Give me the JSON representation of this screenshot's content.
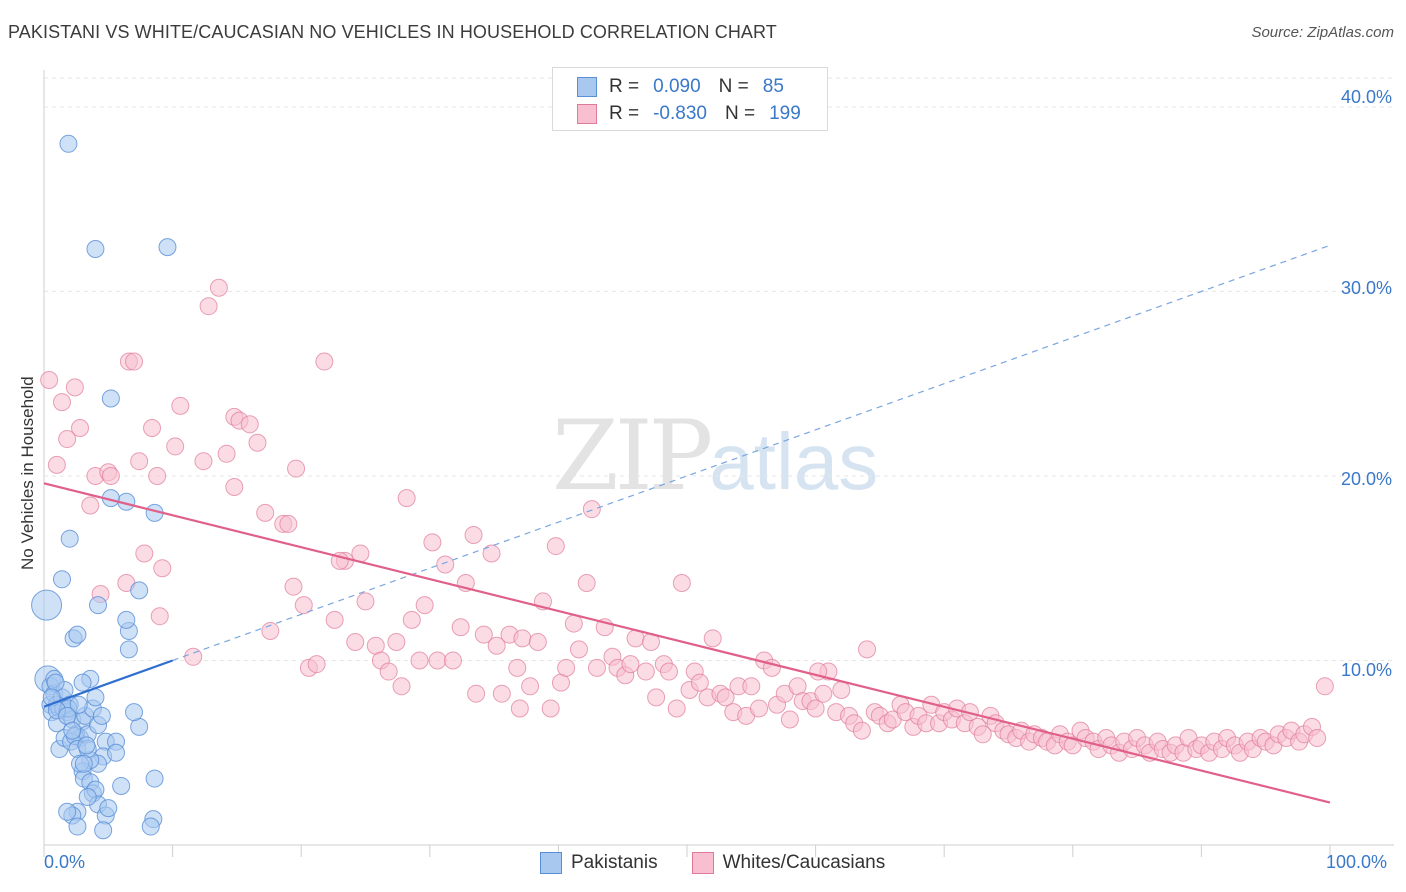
{
  "title": "PAKISTANI VS WHITE/CAUCASIAN NO VEHICLES IN HOUSEHOLD CORRELATION CHART",
  "source": "Source: ZipAtlas.com",
  "watermark": {
    "zip": "ZIP",
    "atlas": "atlas"
  },
  "legend_top": {
    "rows": [
      {
        "r_label": "R =",
        "r_value": "0.090",
        "n_label": "N =",
        "n_value": "85",
        "color": "#a8c8f0",
        "border": "#5a8fd6"
      },
      {
        "r_label": "R =",
        "r_value": "-0.830",
        "n_label": "N =",
        "n_value": "199",
        "color": "#f7bfd0",
        "border": "#e07a9a"
      }
    ]
  },
  "chart_data": {
    "type": "scatter",
    "title": "PAKISTANI VS WHITE/CAUCASIAN NO VEHICLES IN HOUSEHOLD CORRELATION CHART",
    "xlabel": "",
    "ylabel": "No Vehicles in Household",
    "xlim": [
      0,
      100
    ],
    "ylim": [
      0,
      42
    ],
    "x_tick_labels": [
      "0.0%",
      "100.0%"
    ],
    "y_ticks": [
      10,
      20,
      30,
      40
    ],
    "y_tick_labels": [
      "10.0%",
      "20.0%",
      "30.0%",
      "40.0%"
    ],
    "grid": true,
    "legend_position": "bottom",
    "series": [
      {
        "name": "Pakistanis",
        "color": "#a8c8f0",
        "edge": "#5a8fd6",
        "trend": {
          "x0": 0,
          "y0": 7.5,
          "x1": 10,
          "y1": 10.0,
          "dashed_to_x": 100,
          "dashed_to_y": 32.5,
          "color": "#2f6fd0"
        },
        "points": [
          [
            0.2,
            13.0
          ],
          [
            0.3,
            9.0
          ],
          [
            0.5,
            8.6
          ],
          [
            0.5,
            7.6
          ],
          [
            0.6,
            7.2
          ],
          [
            0.8,
            8.2
          ],
          [
            1.0,
            7.6
          ],
          [
            1.2,
            7.4
          ],
          [
            1.4,
            8.0
          ],
          [
            1.5,
            7.4
          ],
          [
            1.0,
            6.6
          ],
          [
            0.8,
            9.0
          ],
          [
            1.6,
            8.4
          ],
          [
            1.8,
            7.2
          ],
          [
            2.0,
            7.6
          ],
          [
            2.2,
            6.8
          ],
          [
            2.5,
            6.0
          ],
          [
            2.8,
            5.8
          ],
          [
            1.2,
            5.2
          ],
          [
            1.6,
            5.8
          ],
          [
            2.1,
            5.6
          ],
          [
            2.4,
            5.9
          ],
          [
            2.6,
            5.2
          ],
          [
            3.0,
            6.7
          ],
          [
            3.2,
            7.0
          ],
          [
            3.4,
            6.0
          ],
          [
            3.6,
            9.0
          ],
          [
            3.0,
            8.8
          ],
          [
            3.8,
            7.4
          ],
          [
            4.2,
            6.5
          ],
          [
            4.5,
            7.0
          ],
          [
            4.8,
            5.6
          ],
          [
            4.6,
            4.8
          ],
          [
            4.2,
            4.4
          ],
          [
            3.6,
            4.6
          ],
          [
            3.4,
            5.2
          ],
          [
            3.0,
            4.0
          ],
          [
            2.8,
            4.4
          ],
          [
            3.1,
            3.6
          ],
          [
            3.6,
            3.4
          ],
          [
            3.8,
            2.8
          ],
          [
            4.0,
            3.0
          ],
          [
            4.2,
            2.2
          ],
          [
            3.4,
            2.6
          ],
          [
            2.6,
            1.8
          ],
          [
            2.2,
            1.6
          ],
          [
            1.8,
            1.8
          ],
          [
            2.6,
            1.0
          ],
          [
            4.8,
            1.6
          ],
          [
            5.0,
            2.0
          ],
          [
            4.6,
            0.8
          ],
          [
            6.0,
            3.2
          ],
          [
            8.6,
            3.6
          ],
          [
            8.5,
            1.4
          ],
          [
            8.3,
            1.0
          ],
          [
            7.4,
            6.4
          ],
          [
            7.0,
            7.2
          ],
          [
            5.6,
            5.6
          ],
          [
            6.6,
            11.6
          ],
          [
            6.4,
            12.2
          ],
          [
            6.6,
            10.6
          ],
          [
            4.2,
            13.0
          ],
          [
            2.3,
            11.2
          ],
          [
            2.6,
            11.4
          ],
          [
            1.4,
            14.4
          ],
          [
            2.0,
            16.6
          ],
          [
            6.4,
            18.6
          ],
          [
            5.2,
            18.8
          ],
          [
            8.6,
            18.0
          ],
          [
            7.4,
            13.8
          ],
          [
            5.2,
            24.2
          ],
          [
            4.0,
            32.3
          ],
          [
            9.6,
            32.4
          ],
          [
            1.9,
            38.0
          ],
          [
            0.9,
            8.8
          ],
          [
            1.9,
            7.4
          ],
          [
            2.7,
            7.6
          ],
          [
            3.3,
            5.4
          ],
          [
            3.1,
            4.4
          ],
          [
            5.6,
            5.0
          ],
          [
            4.0,
            8.0
          ],
          [
            0.6,
            8.0
          ],
          [
            1.0,
            7.3
          ],
          [
            1.8,
            7.0
          ],
          [
            2.2,
            6.2
          ]
        ]
      },
      {
        "name": "Whites/Caucasians",
        "color": "#f7bfd0",
        "edge": "#e07a9a",
        "trend": {
          "x0": 0,
          "y0": 19.6,
          "x1": 100,
          "y1": 2.3,
          "color": "#e0608a"
        },
        "points": [
          [
            0.4,
            25.2
          ],
          [
            1.4,
            24.0
          ],
          [
            1.8,
            22.0
          ],
          [
            2.4,
            24.8
          ],
          [
            2.8,
            22.6
          ],
          [
            1.0,
            20.6
          ],
          [
            3.6,
            18.4
          ],
          [
            4.0,
            20.0
          ],
          [
            5.0,
            20.2
          ],
          [
            5.2,
            20.0
          ],
          [
            4.4,
            13.6
          ],
          [
            6.4,
            14.2
          ],
          [
            6.6,
            26.2
          ],
          [
            7.0,
            26.2
          ],
          [
            7.4,
            20.8
          ],
          [
            7.8,
            15.8
          ],
          [
            8.4,
            22.6
          ],
          [
            8.8,
            20.0
          ],
          [
            9.2,
            15.0
          ],
          [
            9.0,
            12.4
          ],
          [
            10.2,
            21.6
          ],
          [
            10.6,
            23.8
          ],
          [
            11.6,
            10.2
          ],
          [
            12.4,
            20.8
          ],
          [
            12.8,
            29.2
          ],
          [
            13.6,
            30.2
          ],
          [
            14.2,
            21.2
          ],
          [
            14.8,
            19.4
          ],
          [
            14.8,
            23.2
          ],
          [
            15.2,
            23.0
          ],
          [
            16.0,
            22.8
          ],
          [
            16.6,
            21.8
          ],
          [
            17.2,
            18.0
          ],
          [
            17.6,
            11.6
          ],
          [
            18.6,
            17.4
          ],
          [
            19.0,
            17.4
          ],
          [
            19.4,
            14.0
          ],
          [
            19.6,
            20.4
          ],
          [
            20.2,
            13.0
          ],
          [
            20.6,
            9.6
          ],
          [
            21.2,
            9.8
          ],
          [
            21.8,
            26.2
          ],
          [
            22.6,
            12.2
          ],
          [
            23.4,
            15.4
          ],
          [
            24.2,
            11.0
          ],
          [
            24.6,
            15.8
          ],
          [
            25.0,
            13.2
          ],
          [
            25.8,
            10.8
          ],
          [
            26.2,
            10.0
          ],
          [
            26.8,
            9.4
          ],
          [
            27.4,
            11.0
          ],
          [
            27.8,
            8.6
          ],
          [
            28.2,
            18.8
          ],
          [
            28.6,
            12.2
          ],
          [
            29.2,
            10.0
          ],
          [
            29.6,
            13.0
          ],
          [
            30.2,
            16.4
          ],
          [
            30.6,
            10.0
          ],
          [
            31.2,
            15.2
          ],
          [
            31.8,
            10.0
          ],
          [
            32.4,
            11.8
          ],
          [
            32.8,
            14.2
          ],
          [
            33.4,
            16.8
          ],
          [
            33.6,
            8.2
          ],
          [
            34.2,
            11.4
          ],
          [
            34.8,
            15.8
          ],
          [
            35.2,
            10.8
          ],
          [
            35.6,
            8.2
          ],
          [
            36.2,
            11.4
          ],
          [
            36.8,
            9.6
          ],
          [
            37.2,
            11.2
          ],
          [
            37.8,
            8.6
          ],
          [
            38.4,
            11.0
          ],
          [
            38.8,
            13.2
          ],
          [
            39.4,
            7.4
          ],
          [
            39.8,
            16.2
          ],
          [
            40.2,
            8.8
          ],
          [
            40.6,
            9.6
          ],
          [
            41.2,
            12.0
          ],
          [
            41.6,
            10.6
          ],
          [
            42.2,
            14.2
          ],
          [
            42.6,
            18.2
          ],
          [
            43.0,
            9.6
          ],
          [
            43.6,
            11.8
          ],
          [
            44.2,
            10.2
          ],
          [
            44.6,
            9.6
          ],
          [
            45.2,
            9.2
          ],
          [
            45.6,
            9.8
          ],
          [
            46.0,
            11.2
          ],
          [
            46.8,
            9.4
          ],
          [
            47.2,
            11.0
          ],
          [
            47.6,
            8.0
          ],
          [
            48.2,
            9.8
          ],
          [
            48.6,
            9.4
          ],
          [
            49.2,
            7.4
          ],
          [
            49.6,
            14.2
          ],
          [
            50.2,
            8.4
          ],
          [
            50.6,
            9.4
          ],
          [
            51.0,
            8.8
          ],
          [
            51.6,
            8.0
          ],
          [
            52.0,
            11.2
          ],
          [
            52.6,
            8.2
          ],
          [
            53.0,
            8.0
          ],
          [
            53.6,
            7.2
          ],
          [
            54.0,
            8.6
          ],
          [
            54.6,
            7.0
          ],
          [
            55.0,
            8.6
          ],
          [
            55.6,
            7.4
          ],
          [
            56.0,
            10.0
          ],
          [
            56.6,
            9.6
          ],
          [
            57.0,
            7.6
          ],
          [
            57.6,
            8.2
          ],
          [
            58.0,
            6.8
          ],
          [
            58.6,
            8.6
          ],
          [
            59.0,
            7.8
          ],
          [
            59.6,
            7.8
          ],
          [
            60.0,
            7.4
          ],
          [
            60.6,
            8.2
          ],
          [
            61.0,
            9.4
          ],
          [
            61.6,
            7.2
          ],
          [
            62.0,
            8.4
          ],
          [
            62.6,
            7.0
          ],
          [
            63.0,
            6.6
          ],
          [
            63.6,
            6.2
          ],
          [
            64.0,
            10.6
          ],
          [
            64.6,
            7.2
          ],
          [
            65.0,
            7.0
          ],
          [
            65.6,
            6.6
          ],
          [
            66.0,
            6.8
          ],
          [
            66.6,
            7.6
          ],
          [
            67.0,
            7.2
          ],
          [
            67.6,
            6.4
          ],
          [
            68.0,
            7.0
          ],
          [
            68.6,
            6.6
          ],
          [
            69.0,
            7.6
          ],
          [
            69.6,
            6.6
          ],
          [
            70.0,
            7.2
          ],
          [
            70.6,
            6.8
          ],
          [
            71.0,
            7.4
          ],
          [
            71.6,
            6.6
          ],
          [
            72.0,
            7.2
          ],
          [
            72.6,
            6.4
          ],
          [
            73.0,
            6.0
          ],
          [
            73.6,
            7.0
          ],
          [
            74.0,
            6.6
          ],
          [
            74.6,
            6.2
          ],
          [
            75.0,
            6.0
          ],
          [
            75.6,
            5.8
          ],
          [
            76.0,
            6.2
          ],
          [
            76.6,
            5.6
          ],
          [
            77.0,
            6.0
          ],
          [
            77.6,
            5.8
          ],
          [
            78.0,
            5.6
          ],
          [
            78.6,
            5.4
          ],
          [
            79.0,
            6.0
          ],
          [
            79.6,
            5.6
          ],
          [
            80.0,
            5.4
          ],
          [
            80.6,
            6.2
          ],
          [
            81.0,
            5.8
          ],
          [
            81.6,
            5.6
          ],
          [
            82.0,
            5.2
          ],
          [
            82.6,
            5.8
          ],
          [
            83.0,
            5.4
          ],
          [
            83.6,
            5.0
          ],
          [
            84.0,
            5.6
          ],
          [
            84.6,
            5.2
          ],
          [
            85.0,
            5.8
          ],
          [
            85.6,
            5.4
          ],
          [
            86.0,
            5.0
          ],
          [
            86.6,
            5.6
          ],
          [
            87.0,
            5.2
          ],
          [
            87.6,
            5.0
          ],
          [
            88.0,
            5.4
          ],
          [
            88.6,
            5.0
          ],
          [
            89.0,
            5.8
          ],
          [
            89.6,
            5.2
          ],
          [
            90.0,
            5.4
          ],
          [
            90.6,
            5.0
          ],
          [
            91.0,
            5.6
          ],
          [
            91.6,
            5.2
          ],
          [
            92.0,
            5.8
          ],
          [
            92.6,
            5.4
          ],
          [
            93.0,
            5.0
          ],
          [
            93.6,
            5.6
          ],
          [
            94.0,
            5.2
          ],
          [
            94.6,
            5.8
          ],
          [
            95.0,
            5.6
          ],
          [
            95.6,
            5.4
          ],
          [
            96.0,
            6.0
          ],
          [
            96.6,
            5.8
          ],
          [
            97.0,
            6.2
          ],
          [
            97.6,
            5.6
          ],
          [
            98.0,
            6.0
          ],
          [
            98.6,
            6.4
          ],
          [
            99.0,
            5.8
          ],
          [
            99.6,
            8.6
          ],
          [
            23.0,
            15.4
          ],
          [
            37.0,
            7.4
          ],
          [
            60.2,
            9.4
          ]
        ]
      }
    ]
  },
  "axis": {
    "y_label": "No Vehicles in Household",
    "x_min_label": "0.0%",
    "x_max_label": "100.0%"
  }
}
